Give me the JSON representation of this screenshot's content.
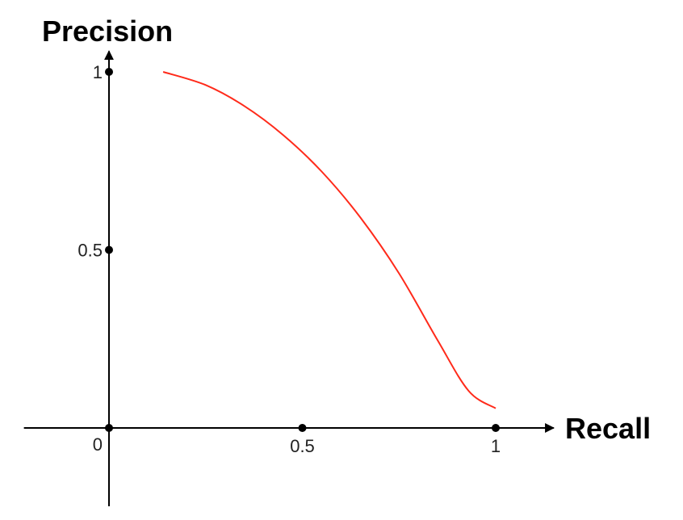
{
  "chart_data": {
    "type": "line",
    "xlabel": "Recall",
    "ylabel": "Precision",
    "xlim": [
      -0.22,
      1.15
    ],
    "ylim": [
      -0.22,
      1.04
    ],
    "x_ticks": [
      {
        "value": 0,
        "label": "0"
      },
      {
        "value": 0.5,
        "label": "0.5"
      },
      {
        "value": 1,
        "label": "1"
      }
    ],
    "y_ticks": [
      {
        "value": 0.5,
        "label": "0.5"
      },
      {
        "value": 1,
        "label": "1"
      }
    ],
    "grid": false,
    "series": [
      {
        "color": "#ff2a1a",
        "x": [
          0.14,
          0.25,
          0.35,
          0.45,
          0.55,
          0.65,
          0.75,
          0.85,
          0.93,
          1.0
        ],
        "y": [
          1.0,
          0.963,
          0.904,
          0.823,
          0.72,
          0.591,
          0.434,
          0.246,
          0.104,
          0.055
        ]
      }
    ]
  }
}
